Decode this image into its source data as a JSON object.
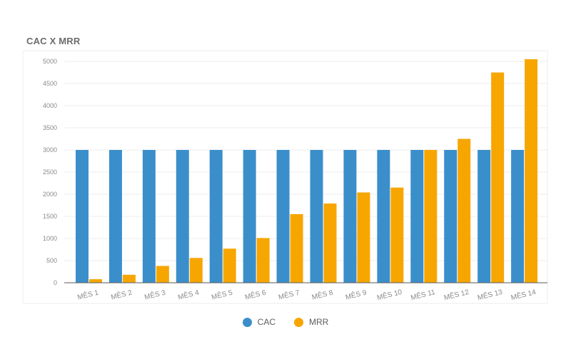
{
  "chart_data": {
    "type": "bar",
    "title": "CAC X MRR",
    "categories": [
      "MÊS 1",
      "MÊS 2",
      "MÊS 3",
      "MÊS 4",
      "MÊS 5",
      "MÊS 6",
      "MÊS 7",
      "MÊS 8",
      "MÊS 9",
      "MÊS 10",
      "MÊS 11",
      "MÊS 12",
      "MÊS 13",
      "MÊS 14"
    ],
    "series": [
      {
        "name": "CAC",
        "color": "#3a8fcb",
        "values": [
          3000,
          3000,
          3000,
          3000,
          3000,
          3000,
          3000,
          3000,
          3000,
          3000,
          3000,
          3000,
          3000,
          3000
        ]
      },
      {
        "name": "MRR",
        "color": "#f7a600",
        "values": [
          80,
          180,
          380,
          560,
          770,
          1010,
          1550,
          1790,
          2040,
          2150,
          3000,
          3250,
          4750,
          5050
        ]
      }
    ],
    "yticks": [
      "0",
      "500",
      "1000",
      "1500",
      "2000",
      "2500",
      "3000",
      "3500",
      "4000",
      "4500",
      "5000"
    ],
    "ylim": [
      0,
      5000
    ],
    "xlabel": "",
    "ylabel": "",
    "grid": true,
    "legend_position": "bottom-center"
  }
}
